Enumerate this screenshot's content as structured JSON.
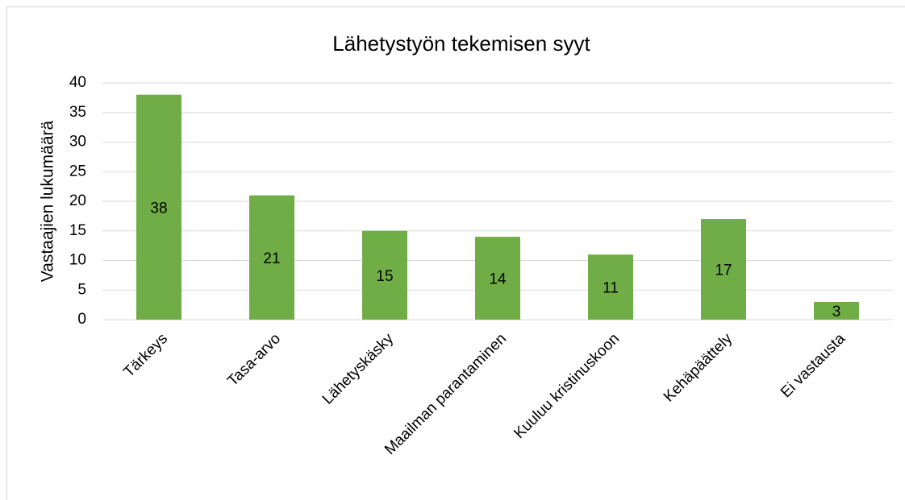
{
  "chart_data": {
    "type": "bar",
    "title": "Lähetystyön tekemisen syyt",
    "y_label": "Vastaajien lukumäärä",
    "categories": [
      "Tärkeys",
      "Tasa-arvo",
      "Lähetyskäsky",
      "Maailman parantaminen",
      "Kuuluu kristinuskoon",
      "Kehäpäättely",
      "Ei vastausta"
    ],
    "values": [
      38,
      21,
      15,
      14,
      11,
      17,
      3
    ],
    "color": "#70ad47",
    "ylim": [
      0,
      40
    ],
    "yticks": [
      0,
      5,
      10,
      15,
      20,
      25,
      30,
      35,
      40
    ],
    "grid": true
  }
}
